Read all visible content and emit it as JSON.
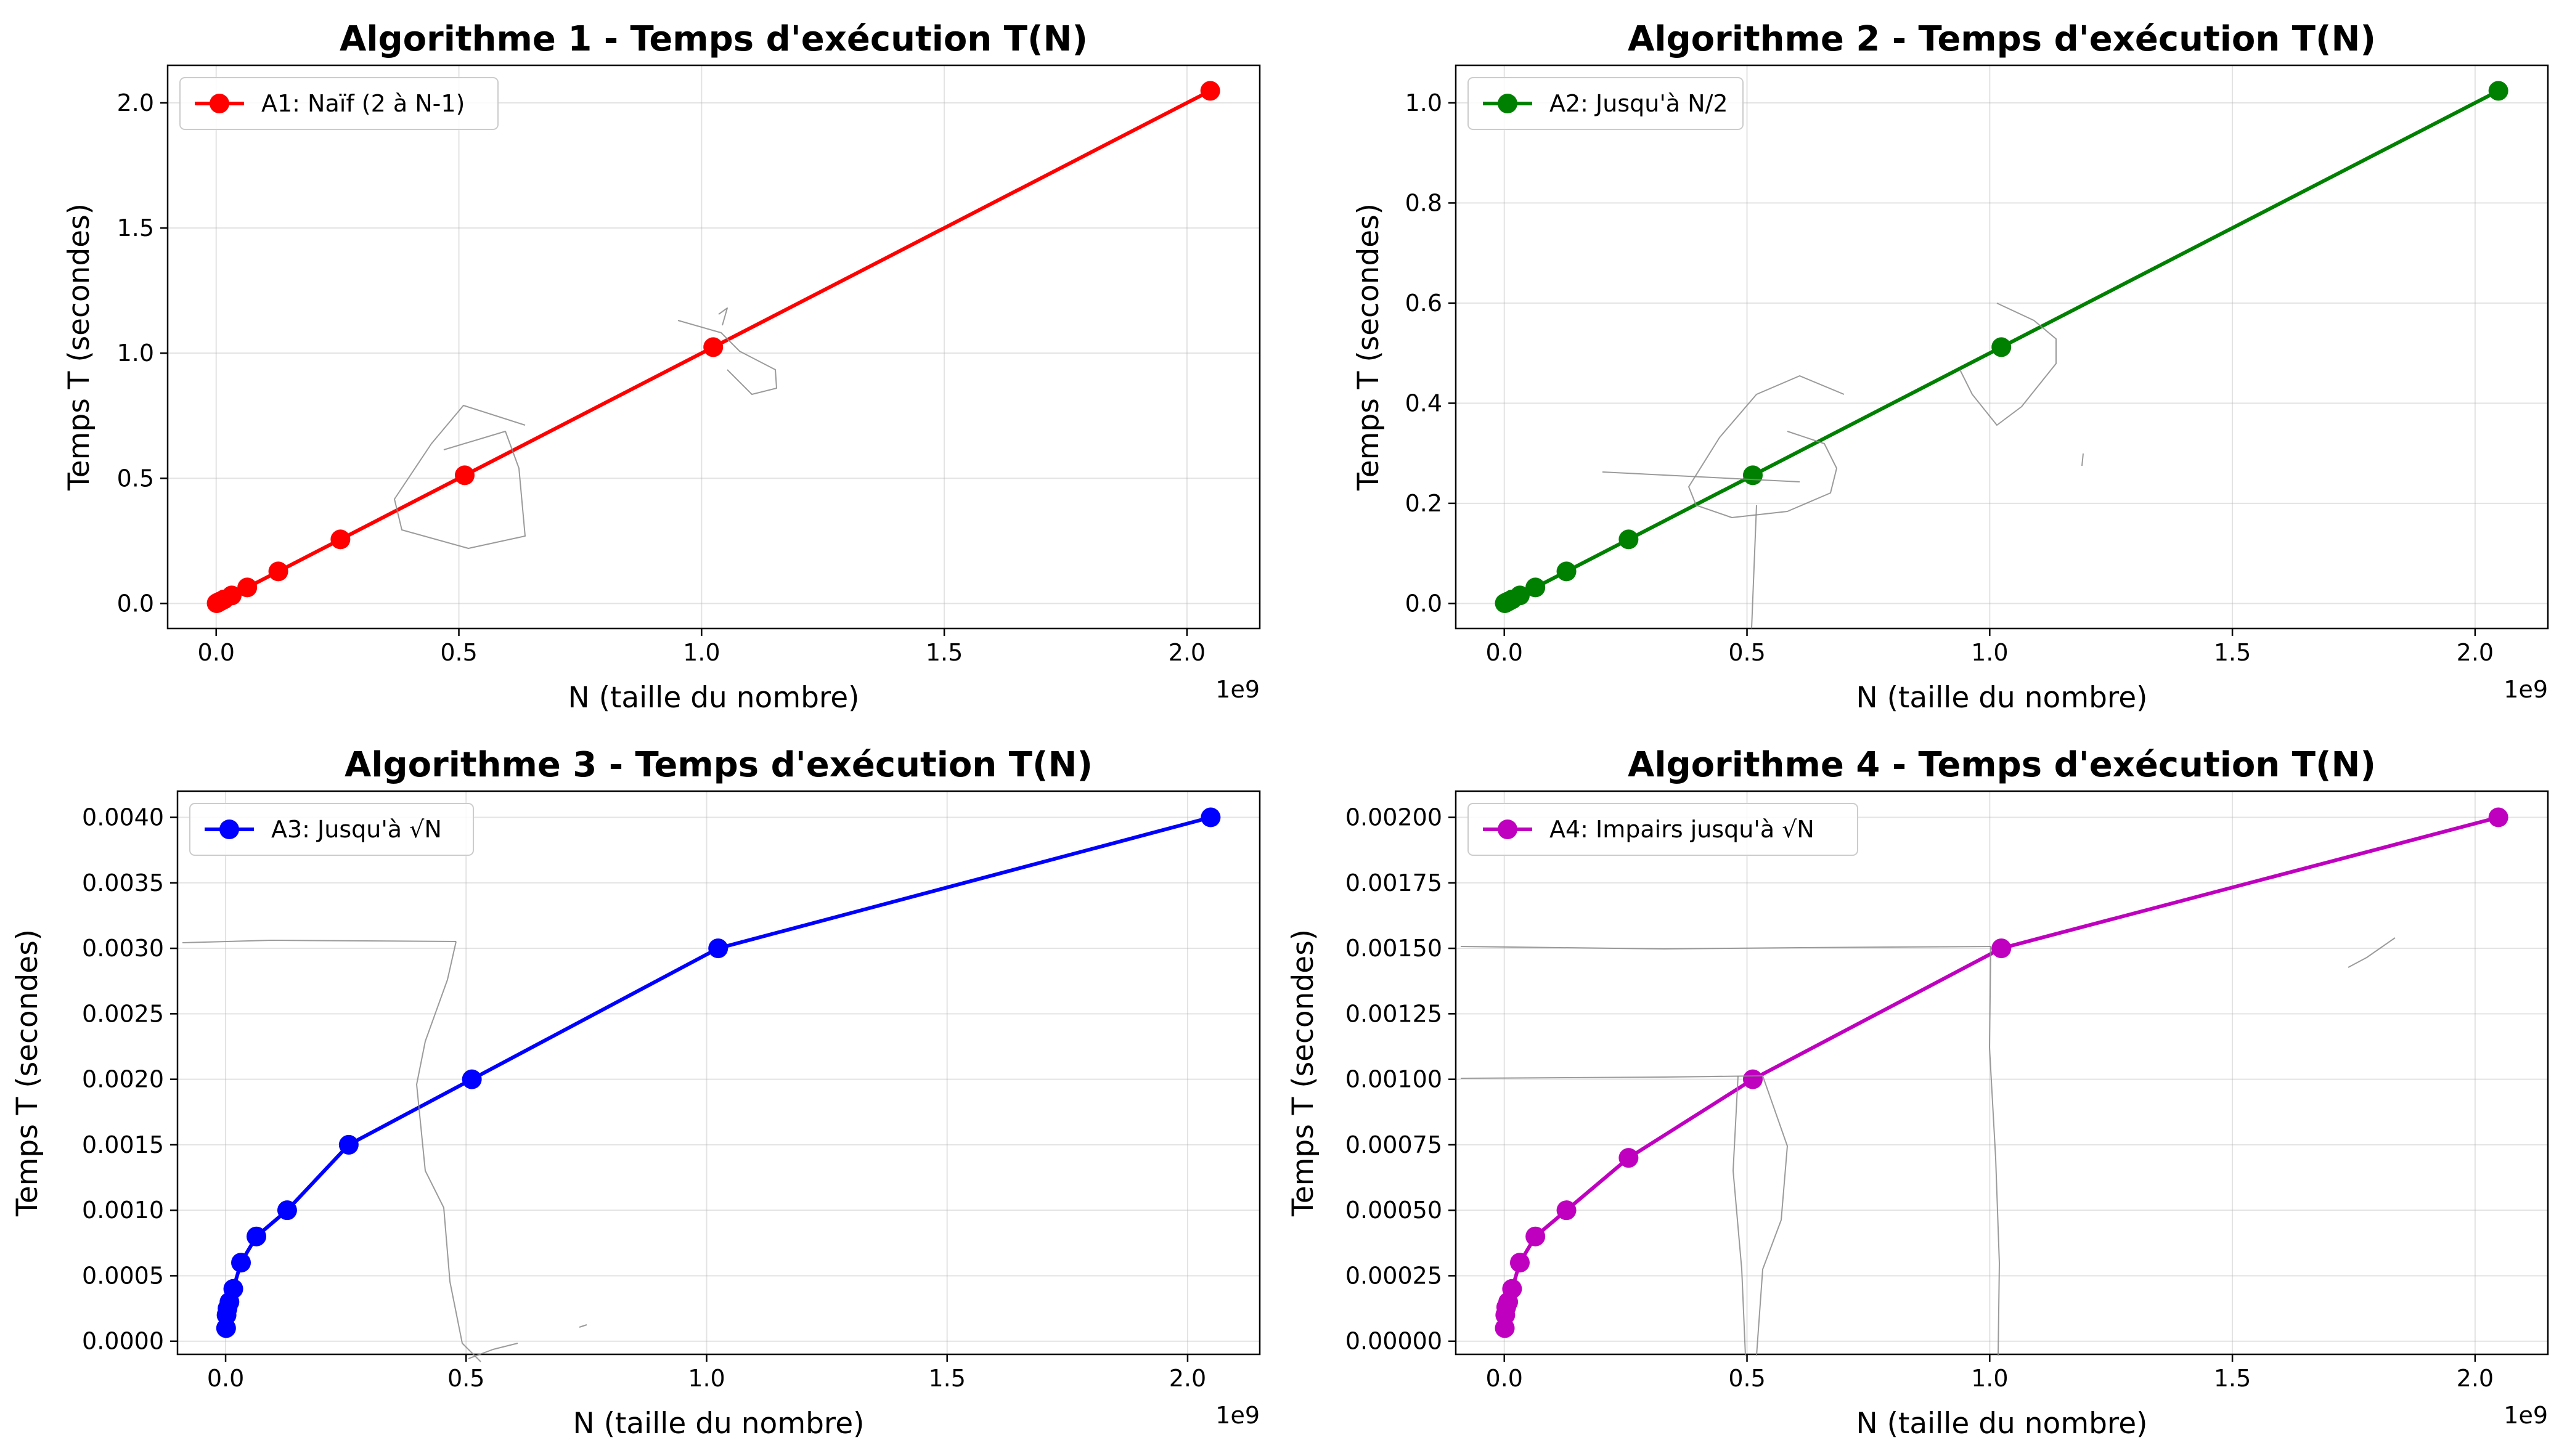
{
  "chart_data": [
    {
      "type": "line",
      "title": "Algorithme 1 - Temps d'exécution T(N)",
      "xlabel": "N (taille du nombre)",
      "ylabel": "Temps T (secondes)",
      "x_offset_label": "1e9",
      "xlim": [
        -0.1,
        2.15
      ],
      "ylim": [
        -0.1,
        2.15
      ],
      "x_ticks": [
        0,
        0.5,
        1.0,
        1.5,
        2.0
      ],
      "x_tick_labels": [
        "0.0",
        "0.5",
        "1.0",
        "1.5",
        "2.0"
      ],
      "y_ticks": [
        0,
        0.5,
        1.0,
        1.5,
        2.0
      ],
      "y_tick_labels": [
        "0.0",
        "0.5",
        "1.0",
        "1.5",
        "2.0"
      ],
      "grid": true,
      "legend_position": "top-left",
      "series": [
        {
          "name": "A1: Naïf (2 à N-1)",
          "color": "#ff0000",
          "x": [
            0.001,
            0.002,
            0.004,
            0.008,
            0.016,
            0.032,
            0.064,
            0.128,
            0.256,
            0.512,
            1.024,
            2.048
          ],
          "y": [
            0.001,
            0.002,
            0.004,
            0.008,
            0.016,
            0.032,
            0.064,
            0.128,
            0.256,
            0.512,
            1.024,
            2.048
          ]
        }
      ]
    },
    {
      "type": "line",
      "title": "Algorithme 2 - Temps d'exécution T(N)",
      "xlabel": "N (taille du nombre)",
      "ylabel": "Temps T (secondes)",
      "x_offset_label": "1e9",
      "xlim": [
        -0.1,
        2.15
      ],
      "ylim": [
        -0.05,
        1.075
      ],
      "x_ticks": [
        0,
        0.5,
        1.0,
        1.5,
        2.0
      ],
      "x_tick_labels": [
        "0.0",
        "0.5",
        "1.0",
        "1.5",
        "2.0"
      ],
      "y_ticks": [
        0,
        0.2,
        0.4,
        0.6,
        0.8,
        1.0
      ],
      "y_tick_labels": [
        "0.0",
        "0.2",
        "0.4",
        "0.6",
        "0.8",
        "1.0"
      ],
      "grid": true,
      "legend_position": "top-left",
      "series": [
        {
          "name": "A2: Jusqu'à N/2",
          "color": "#008000",
          "x": [
            0.001,
            0.002,
            0.004,
            0.008,
            0.016,
            0.032,
            0.064,
            0.128,
            0.256,
            0.512,
            1.024,
            2.048
          ],
          "y": [
            0.0005,
            0.001,
            0.002,
            0.004,
            0.008,
            0.016,
            0.032,
            0.064,
            0.128,
            0.256,
            0.512,
            1.024
          ]
        }
      ]
    },
    {
      "type": "line",
      "title": "Algorithme 3 - Temps d'exécution T(N)",
      "xlabel": "N (taille du nombre)",
      "ylabel": "Temps T (secondes)",
      "x_offset_label": "1e9",
      "xlim": [
        -0.1,
        2.15
      ],
      "ylim": [
        -0.0001,
        0.0042
      ],
      "x_ticks": [
        0,
        0.5,
        1.0,
        1.5,
        2.0
      ],
      "x_tick_labels": [
        "0.0",
        "0.5",
        "1.0",
        "1.5",
        "2.0"
      ],
      "y_ticks": [
        0,
        0.0005,
        0.001,
        0.0015,
        0.002,
        0.0025,
        0.003,
        0.0035,
        0.004
      ],
      "y_tick_labels": [
        "0.0000",
        "0.0005",
        "0.0010",
        "0.0015",
        "0.0020",
        "0.0025",
        "0.0030",
        "0.0035",
        "0.0040"
      ],
      "grid": true,
      "legend_position": "top-left",
      "series": [
        {
          "name": "A3: Jusqu'à √N",
          "color": "#0000ff",
          "x": [
            0.001,
            0.002,
            0.004,
            0.008,
            0.016,
            0.032,
            0.064,
            0.128,
            0.256,
            0.512,
            1.024,
            2.048
          ],
          "y": [
            0.0001,
            0.0002,
            0.00025,
            0.0003,
            0.0004,
            0.0006,
            0.0008,
            0.001,
            0.0015,
            0.002,
            0.003,
            0.004
          ]
        }
      ]
    },
    {
      "type": "line",
      "title": "Algorithme 4 - Temps d'exécution T(N)",
      "xlabel": "N (taille du nombre)",
      "ylabel": "Temps T (secondes)",
      "x_offset_label": "1e9",
      "xlim": [
        -0.1,
        2.15
      ],
      "ylim": [
        -5e-05,
        0.0021
      ],
      "x_ticks": [
        0,
        0.5,
        1.0,
        1.5,
        2.0
      ],
      "x_tick_labels": [
        "0.0",
        "0.5",
        "1.0",
        "1.5",
        "2.0"
      ],
      "y_ticks": [
        0,
        0.00025,
        0.0005,
        0.00075,
        0.001,
        0.00125,
        0.0015,
        0.00175,
        0.002
      ],
      "y_tick_labels": [
        "0.00000",
        "0.00025",
        "0.00050",
        "0.00075",
        "0.00100",
        "0.00125",
        "0.00150",
        "0.00175",
        "0.00200"
      ],
      "grid": true,
      "legend_position": "top-left",
      "series": [
        {
          "name": "A4: Impairs jusqu'à √N",
          "color": "#bf00bf",
          "x": [
            0.001,
            0.002,
            0.004,
            0.008,
            0.016,
            0.032,
            0.064,
            0.128,
            0.256,
            0.512,
            1.024,
            2.048
          ],
          "y": [
            5e-05,
            0.0001,
            0.00013,
            0.00015,
            0.0002,
            0.0003,
            0.0004,
            0.0005,
            0.0007,
            0.001,
            0.0015,
            0.002
          ]
        }
      ]
    }
  ]
}
